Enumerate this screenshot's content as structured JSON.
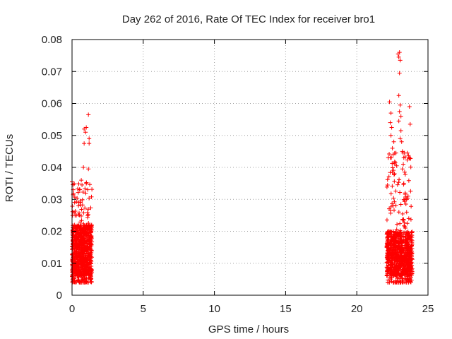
{
  "chart_data": {
    "type": "scatter",
    "title": "Day 262 of 2016, Rate Of TEC Index for receiver bro1",
    "xlabel": "GPS time / hours",
    "ylabel": "ROTI / TECUs",
    "xlim": [
      0,
      25
    ],
    "ylim": [
      0,
      0.08
    ],
    "grid": true,
    "marker": "+",
    "color": "#ff0000",
    "x_ticks": [
      "0",
      "5",
      "10",
      "15",
      "20",
      "25"
    ],
    "y_ticks": [
      "0",
      "0.01",
      "0.02",
      "0.03",
      "0.04",
      "0.05",
      "0.06",
      "0.07",
      "0.08"
    ],
    "series": [
      {
        "name": "ROTI",
        "clusters": [
          {
            "x_range": [
              0.0,
              1.4
            ],
            "y_core": [
              0.006,
              0.022
            ],
            "y_extent": [
              0.004,
              0.036
            ]
          },
          {
            "x_range": [
              22.1,
              23.9
            ],
            "y_core": [
              0.006,
              0.02
            ],
            "y_extent": [
              0.004,
              0.045
            ]
          }
        ],
        "points": [
          [
            0.0,
            0.0355
          ],
          [
            0.55,
            0.033
          ],
          [
            0.65,
            0.036
          ],
          [
            0.7,
            0.0345
          ],
          [
            0.8,
            0.04
          ],
          [
            0.85,
            0.052
          ],
          [
            0.85,
            0.0475
          ],
          [
            0.95,
            0.051
          ],
          [
            1.0,
            0.0525
          ],
          [
            1.15,
            0.0565
          ],
          [
            1.2,
            0.049
          ],
          [
            1.2,
            0.0475
          ],
          [
            1.15,
            0.0395
          ],
          [
            0.3,
            0.025
          ],
          [
            0.45,
            0.028
          ],
          [
            1.0,
            0.035
          ],
          [
            1.1,
            0.033
          ],
          [
            22.3,
            0.0605
          ],
          [
            22.4,
            0.057
          ],
          [
            22.35,
            0.054
          ],
          [
            22.45,
            0.0525
          ],
          [
            22.4,
            0.05
          ],
          [
            22.5,
            0.046
          ],
          [
            22.55,
            0.044
          ],
          [
            22.6,
            0.048
          ],
          [
            22.7,
            0.0415
          ],
          [
            22.75,
            0.0445
          ],
          [
            22.9,
            0.0755
          ],
          [
            22.95,
            0.0745
          ],
          [
            23.0,
            0.076
          ],
          [
            23.05,
            0.0735
          ],
          [
            23.0,
            0.0695
          ],
          [
            22.95,
            0.0625
          ],
          [
            23.05,
            0.0595
          ],
          [
            23.0,
            0.0575
          ],
          [
            23.1,
            0.056
          ],
          [
            22.95,
            0.0545
          ],
          [
            23.1,
            0.0515
          ],
          [
            23.05,
            0.049
          ],
          [
            23.15,
            0.048
          ],
          [
            23.2,
            0.045
          ],
          [
            23.25,
            0.0445
          ],
          [
            23.3,
            0.043
          ],
          [
            23.35,
            0.0445
          ],
          [
            23.55,
            0.0445
          ],
          [
            23.7,
            0.059
          ],
          [
            23.75,
            0.0535
          ],
          [
            22.5,
            0.0385
          ],
          [
            22.65,
            0.038
          ],
          [
            23.3,
            0.035
          ],
          [
            23.4,
            0.032
          ],
          [
            23.5,
            0.03
          ],
          [
            23.6,
            0.031
          ],
          [
            23.45,
            0.0285
          ],
          [
            23.2,
            0.0395
          ],
          [
            22.8,
            0.0405
          ],
          [
            23.5,
            0.026
          ],
          [
            23.65,
            0.024
          ]
        ]
      }
    ]
  }
}
